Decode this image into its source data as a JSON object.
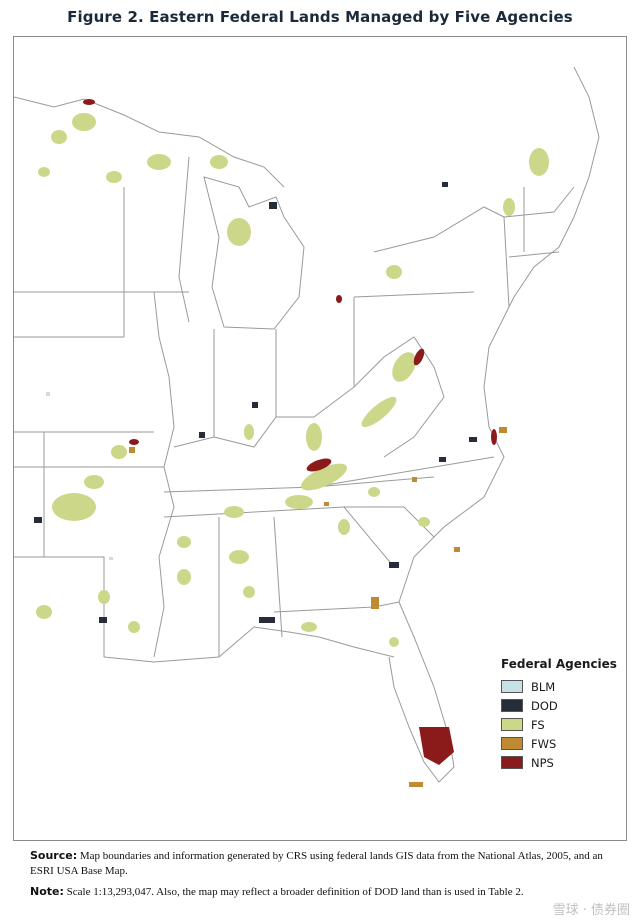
{
  "title": "Figure 2. Eastern Federal Lands Managed by Five Agencies",
  "legend": {
    "title": "Federal Agencies",
    "items": [
      {
        "label": "BLM",
        "color": "#c9dfe6"
      },
      {
        "label": "DOD",
        "color": "#262c3a"
      },
      {
        "label": "FS",
        "color": "#cdd78a"
      },
      {
        "label": "FWS",
        "color": "#c08a32"
      },
      {
        "label": "NPS",
        "color": "#8b1a1a"
      }
    ]
  },
  "map_colors": {
    "land": "#ffffff",
    "border": "#9a9a9a",
    "water": "#ffffff"
  },
  "source": {
    "label": "Source:",
    "text": "Map boundaries and information generated by CRS using federal lands GIS data from the National Atlas, 2005, and an ESRI USA Base Map."
  },
  "note": {
    "label": "Note:",
    "text": "Scale 1:13,293,047. Also, the map may reflect a broader definition of DOD land than is used in Table 2."
  },
  "watermark": "雪球 · 债券圈"
}
